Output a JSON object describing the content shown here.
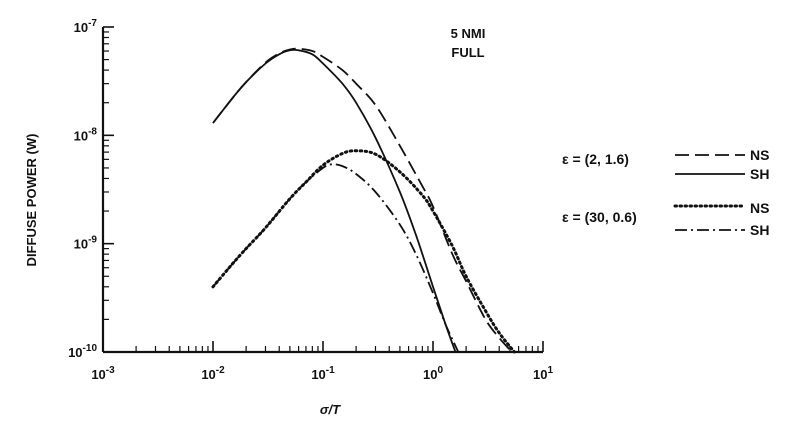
{
  "chart_data": {
    "type": "line",
    "x_scale": "log",
    "y_scale": "log",
    "xlim": [
      0.001,
      10
    ],
    "ylim": [
      1e-10,
      1e-07
    ],
    "xlabel": "σ/T",
    "ylabel": "DIFFUSE POWER (W)",
    "x_ticks": [
      {
        "value": 0.001,
        "base": "10",
        "exp": "-3"
      },
      {
        "value": 0.01,
        "base": "10",
        "exp": "-2"
      },
      {
        "value": 0.1,
        "base": "10",
        "exp": "-1"
      },
      {
        "value": 1,
        "base": "10",
        "exp": "0"
      },
      {
        "value": 10,
        "base": "10",
        "exp": "1"
      }
    ],
    "y_ticks": [
      {
        "value": 1e-10,
        "base": "10",
        "exp": "-10"
      },
      {
        "value": 1e-09,
        "base": "10",
        "exp": "-9"
      },
      {
        "value": 1e-08,
        "base": "10",
        "exp": "-8"
      },
      {
        "value": 1e-07,
        "base": "10",
        "exp": "-7"
      }
    ],
    "annotation": [
      "5 NMI",
      "FULL"
    ],
    "legend_groups": [
      {
        "label": "ε = (2, 1.6)",
        "entries": [
          {
            "style": "dashed",
            "label": "NS"
          },
          {
            "style": "solid",
            "label": "SH"
          }
        ]
      },
      {
        "label": "ε = (30, 0.6)",
        "entries": [
          {
            "style": "dotted",
            "label": "NS"
          },
          {
            "style": "dashdot",
            "label": "SH"
          }
        ]
      }
    ],
    "series": [
      {
        "group": "ε = (2, 1.6)",
        "label": "NS",
        "style": "dashed",
        "x": [
          0.01,
          0.015,
          0.02,
          0.03,
          0.04,
          0.05,
          0.06,
          0.08,
          0.1,
          0.15,
          0.2,
          0.3,
          0.5,
          0.8,
          1,
          1.5,
          2,
          3,
          4,
          5.2
        ],
        "y": [
          1.3e-08,
          2.2e-08,
          3.1e-08,
          4.7e-08,
          5.7e-08,
          6.2e-08,
          6.3e-08,
          6e-08,
          5.3e-08,
          4e-08,
          3e-08,
          1.9e-08,
          8e-09,
          3.4e-09,
          2.2e-09,
          8e-10,
          4.5e-10,
          2e-10,
          1.35e-10,
          1e-10
        ]
      },
      {
        "group": "ε = (2, 1.6)",
        "label": "SH",
        "style": "solid",
        "x": [
          0.01,
          0.015,
          0.02,
          0.03,
          0.04,
          0.05,
          0.06,
          0.08,
          0.1,
          0.15,
          0.2,
          0.3,
          0.5,
          0.7,
          1,
          1.3,
          1.6
        ],
        "y": [
          1.3e-08,
          2.2e-08,
          3.1e-08,
          4.6e-08,
          5.6e-08,
          6.1e-08,
          6.1e-08,
          5.6e-08,
          4.6e-08,
          3e-08,
          2e-08,
          9.5e-09,
          3e-09,
          1.2e-09,
          4e-10,
          1.8e-10,
          1e-10
        ]
      },
      {
        "group": "ε = (30, 0.6)",
        "label": "NS",
        "style": "dotted",
        "x": [
          0.01,
          0.015,
          0.02,
          0.03,
          0.05,
          0.07,
          0.1,
          0.15,
          0.2,
          0.3,
          0.5,
          0.8,
          1,
          1.5,
          2,
          3,
          4,
          5.5
        ],
        "y": [
          4e-10,
          6.5e-10,
          9e-10,
          1.4e-09,
          2.6e-09,
          3.7e-09,
          5.3e-09,
          6.8e-09,
          7.2e-09,
          6.7e-09,
          4.6e-09,
          2.8e-09,
          2e-09,
          9.5e-10,
          5e-10,
          2.4e-10,
          1.5e-10,
          1e-10
        ]
      },
      {
        "group": "ε = (30, 0.6)",
        "label": "SH",
        "style": "dashdot",
        "x": [
          0.01,
          0.015,
          0.02,
          0.03,
          0.05,
          0.07,
          0.1,
          0.12,
          0.15,
          0.2,
          0.3,
          0.5,
          0.7,
          1,
          1.3,
          1.7
        ],
        "y": [
          4e-10,
          6.5e-10,
          9e-10,
          1.4e-09,
          2.6e-09,
          3.7e-09,
          5e-09,
          5.4e-09,
          5.2e-09,
          4.4e-09,
          3e-09,
          1.5e-09,
          8e-10,
          3.5e-10,
          1.8e-10,
          1e-10
        ]
      }
    ]
  }
}
